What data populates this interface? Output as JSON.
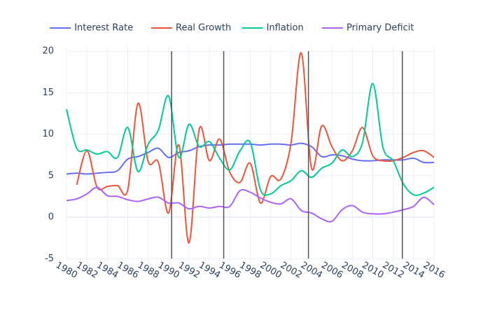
{
  "chart_data": {
    "type": "line",
    "x": [
      1980,
      1981,
      1982,
      1983,
      1984,
      1985,
      1986,
      1987,
      1988,
      1989,
      1990,
      1991,
      1992,
      1993,
      1994,
      1995,
      1996,
      1997,
      1998,
      1999,
      2000,
      2001,
      2002,
      2003,
      2004,
      2005,
      2006,
      2007,
      2008,
      2009,
      2010,
      2011,
      2012,
      2013,
      2014,
      2015,
      2016
    ],
    "series": [
      {
        "name": "Interest Rate",
        "color": "#636efa",
        "values": [
          5.2,
          5.3,
          5.2,
          5.3,
          5.4,
          5.6,
          7.0,
          7.3,
          7.8,
          8.3,
          7.2,
          7.8,
          8.0,
          8.5,
          8.7,
          8.7,
          8.8,
          8.8,
          8.8,
          8.7,
          8.8,
          8.8,
          8.7,
          8.9,
          8.5,
          7.3,
          7.5,
          7.4,
          7.0,
          6.8,
          6.8,
          6.9,
          6.9,
          6.9,
          7.1,
          6.6,
          6.6
        ]
      },
      {
        "name": "Real Growth",
        "color": "#ef553b",
        "values": [
          null,
          3.9,
          8.0,
          3.6,
          3.7,
          3.8,
          3.3,
          13.7,
          6.7,
          6.6,
          0.5,
          8.7,
          -3.1,
          10.6,
          6.8,
          9.4,
          5.4,
          4.2,
          6.5,
          1.7,
          4.9,
          4.6,
          9.0,
          19.8,
          5.9,
          11.0,
          8.5,
          6.8,
          8.0,
          10.8,
          7.4,
          6.8,
          6.8,
          7.2,
          7.8,
          8.0,
          7.2
        ]
      },
      {
        "name": "Inflation",
        "color": "#00cc96",
        "values": [
          13.0,
          8.3,
          8.1,
          7.6,
          7.9,
          7.2,
          10.8,
          5.5,
          8.8,
          10.5,
          14.6,
          7.2,
          11.2,
          8.5,
          9.1,
          7.1,
          5.7,
          8.0,
          9.0,
          3.3,
          2.8,
          3.8,
          4.4,
          5.6,
          4.8,
          5.9,
          6.5,
          8.1,
          7.3,
          9.0,
          16.1,
          8.4,
          6.8,
          4.0,
          2.7,
          2.9,
          3.6
        ]
      },
      {
        "name": "Primary Deficit",
        "color": "#ab63fa",
        "values": [
          2.0,
          2.2,
          2.8,
          3.6,
          2.6,
          2.5,
          2.1,
          1.9,
          2.2,
          2.4,
          1.7,
          1.7,
          1.0,
          1.3,
          1.1,
          1.3,
          1.3,
          3.2,
          3.0,
          2.3,
          1.8,
          1.6,
          2.2,
          0.8,
          0.5,
          -0.2,
          -0.5,
          0.9,
          1.4,
          0.6,
          0.4,
          0.4,
          0.6,
          0.9,
          1.3,
          2.4,
          1.5
        ]
      }
    ],
    "vlines": [
      1990.3,
      1995.4,
      2003.7,
      2012.9
    ],
    "xlim": [
      1980,
      2016
    ],
    "xticks": [
      1980,
      1982,
      1984,
      1986,
      1988,
      1990,
      1992,
      1994,
      1996,
      1998,
      2000,
      2002,
      2004,
      2006,
      2008,
      2010,
      2012,
      2014,
      2016
    ],
    "ylim": [
      -5.4,
      20.6
    ],
    "yticks": [
      -5,
      0,
      5,
      10,
      15,
      20
    ],
    "grid": true,
    "legend": "top-right"
  }
}
